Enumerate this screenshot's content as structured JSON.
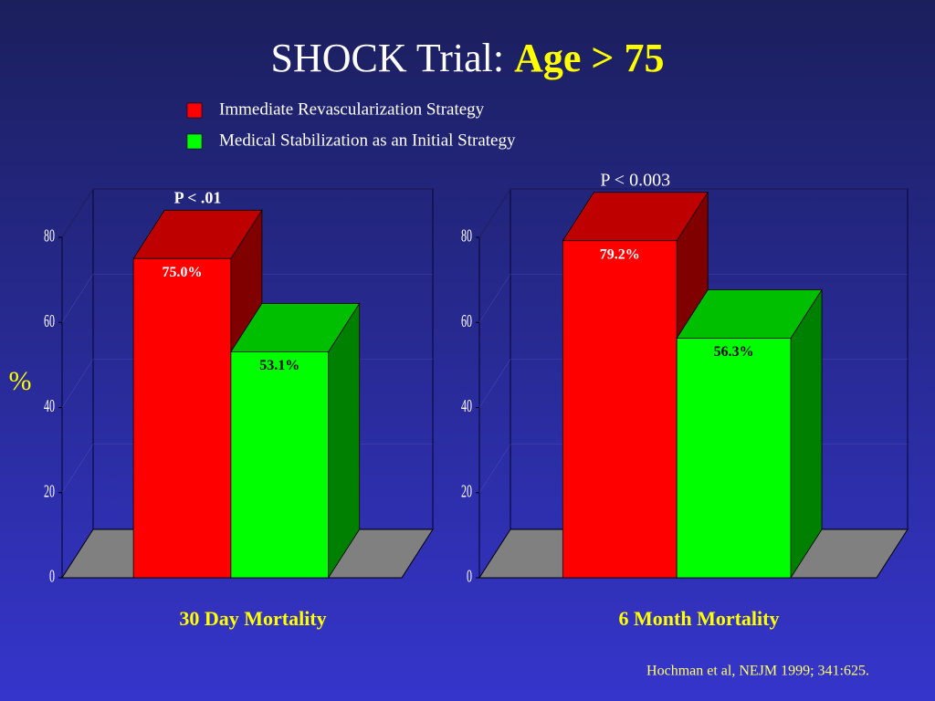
{
  "title": "SHOCK Trial:",
  "title_highlight": "Age > 75",
  "y_label": "%",
  "source": "Hochman et al, NEJM 1999; 341:625.",
  "chart_data": {
    "type": "bar3d",
    "categories": [
      "30 Day Mortality",
      "6 Month Mortality"
    ],
    "annotations": [
      "P < .01",
      "P < 0.003"
    ],
    "series": [
      {
        "name": "Immediate Revascularization Strategy",
        "color": "#ff0000",
        "values": [
          75.0,
          79.2
        ],
        "value_labels": [
          "75.0%",
          "79.2%"
        ]
      },
      {
        "name": "Medical Stabilization as an Initial Strategy",
        "color": "#00ff00",
        "values": [
          53.1,
          56.3
        ],
        "value_labels": [
          "53.1%",
          "56.3%"
        ]
      }
    ],
    "ylim": [
      0,
      80
    ],
    "yticks": [
      0,
      20,
      40,
      60,
      80
    ],
    "grid": true
  }
}
